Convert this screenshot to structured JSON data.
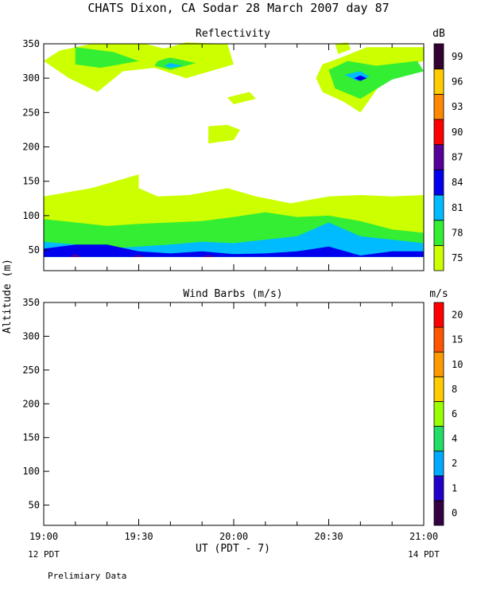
{
  "chart_data": [
    {
      "type": "heatmap",
      "title": "Reflectivity",
      "colorbar_label": "dB",
      "colorbar_ticks": [
        "75",
        "78",
        "81",
        "84",
        "87",
        "90",
        "93",
        "96",
        "99"
      ],
      "colors": [
        "#ccff00",
        "#33ee33",
        "#00bbff",
        "#0000ee",
        "#550099",
        "#ff0000",
        "#ff8800",
        "#ffcc00",
        "#330033"
      ],
      "xlim": [
        0,
        120
      ],
      "ylim": [
        20,
        350
      ],
      "yticks": [
        50,
        100,
        150,
        200,
        250,
        300,
        350
      ],
      "regions": [
        {
          "level": 0,
          "points": [
            [
              0,
              40
            ],
            [
              120,
              40
            ],
            [
              120,
              130
            ],
            [
              110,
              128
            ],
            [
              100,
              130
            ],
            [
              90,
              128
            ],
            [
              78,
              118
            ],
            [
              67,
              128
            ],
            [
              58,
              140
            ],
            [
              46,
              130
            ],
            [
              36,
              128
            ],
            [
              30,
              140
            ],
            [
              30,
              160
            ],
            [
              15,
              140
            ],
            [
              0,
              128
            ]
          ]
        },
        {
          "level": 0,
          "points": [
            [
              0,
              325
            ],
            [
              5,
              340
            ],
            [
              15,
              350
            ],
            [
              32,
              350
            ],
            [
              38,
              343
            ],
            [
              45,
              352
            ],
            [
              58,
              350
            ],
            [
              60,
              320
            ],
            [
              45,
              300
            ],
            [
              35,
              315
            ],
            [
              25,
              310
            ],
            [
              17,
              280
            ],
            [
              8,
              300
            ]
          ]
        },
        {
          "level": 0,
          "points": [
            [
              52,
              205
            ],
            [
              60,
              210
            ],
            [
              62,
              225
            ],
            [
              58,
              232
            ],
            [
              52,
              230
            ]
          ]
        },
        {
          "level": 0,
          "points": [
            [
              60,
              262
            ],
            [
              67,
              270
            ],
            [
              65,
              280
            ],
            [
              58,
              272
            ]
          ]
        },
        {
          "level": 0,
          "points": [
            [
              88,
              320
            ],
            [
              94,
              330
            ],
            [
              102,
              345
            ],
            [
              120,
              345
            ],
            [
              120,
              325
            ],
            [
              110,
              315
            ],
            [
              100,
              250
            ],
            [
              95,
              265
            ],
            [
              88,
              280
            ],
            [
              86,
              300
            ]
          ]
        },
        {
          "level": 0,
          "points": [
            [
              92,
              350
            ],
            [
              93,
              335
            ],
            [
              97,
              342
            ],
            [
              96,
              352
            ]
          ]
        },
        {
          "level": 1,
          "points": [
            [
              0,
              40
            ],
            [
              120,
              40
            ],
            [
              120,
              75
            ],
            [
              110,
              80
            ],
            [
              100,
              92
            ],
            [
              90,
              100
            ],
            [
              80,
              98
            ],
            [
              70,
              105
            ],
            [
              60,
              98
            ],
            [
              50,
              92
            ],
            [
              40,
              90
            ],
            [
              30,
              88
            ],
            [
              20,
              85
            ],
            [
              10,
              90
            ],
            [
              0,
              95
            ]
          ]
        },
        {
          "level": 1,
          "points": [
            [
              10,
              345
            ],
            [
              22,
              338
            ],
            [
              30,
              325
            ],
            [
              18,
              315
            ],
            [
              10,
              320
            ]
          ]
        },
        {
          "level": 1,
          "points": [
            [
              36,
              325
            ],
            [
              40,
              330
            ],
            [
              48,
              322
            ],
            [
              40,
              312
            ],
            [
              35,
              318
            ]
          ]
        },
        {
          "level": 1,
          "points": [
            [
              90,
              312
            ],
            [
              96,
              325
            ],
            [
              105,
              318
            ],
            [
              118,
              325
            ],
            [
              120,
              310
            ],
            [
              110,
              298
            ],
            [
              100,
              270
            ],
            [
              92,
              285
            ]
          ]
        },
        {
          "level": 2,
          "points": [
            [
              0,
              40
            ],
            [
              120,
              40
            ],
            [
              120,
              60
            ],
            [
              110,
              65
            ],
            [
              100,
              70
            ],
            [
              90,
              90
            ],
            [
              80,
              70
            ],
            [
              70,
              65
            ],
            [
              60,
              60
            ],
            [
              50,
              62
            ],
            [
              40,
              58
            ],
            [
              30,
              55
            ],
            [
              20,
              52
            ],
            [
              10,
              58
            ],
            [
              0,
              62
            ]
          ]
        },
        {
          "level": 2,
          "points": [
            [
              38,
              318
            ],
            [
              40,
              322
            ],
            [
              44,
              318
            ],
            [
              40,
              315
            ]
          ]
        },
        {
          "level": 2,
          "points": [
            [
              95,
              305
            ],
            [
              100,
              310
            ],
            [
              103,
              302
            ],
            [
              99,
              296
            ]
          ]
        },
        {
          "level": 3,
          "points": [
            [
              0,
              40
            ],
            [
              120,
              40
            ],
            [
              120,
              48
            ],
            [
              110,
              48
            ],
            [
              100,
              42
            ],
            [
              90,
              55
            ],
            [
              80,
              48
            ],
            [
              70,
              45
            ],
            [
              60,
              44
            ],
            [
              50,
              48
            ],
            [
              40,
              45
            ],
            [
              30,
              48
            ],
            [
              20,
              58
            ],
            [
              10,
              58
            ],
            [
              0,
              52
            ]
          ]
        },
        {
          "level": 3,
          "points": [
            [
              98,
              300
            ],
            [
              100,
              304
            ],
            [
              102,
              300
            ],
            [
              100,
              296
            ]
          ]
        },
        {
          "level": 4,
          "points": [
            [
              8,
              40
            ],
            [
              12,
              40
            ],
            [
              10,
              44
            ]
          ]
        },
        {
          "level": 4,
          "points": [
            [
              28,
              40
            ],
            [
              32,
              40
            ],
            [
              30,
              43
            ]
          ]
        },
        {
          "level": 4,
          "points": [
            [
              50,
              40
            ],
            [
              54,
              40
            ],
            [
              52,
              43
            ]
          ]
        }
      ]
    },
    {
      "type": "scatter",
      "title": "Wind Barbs (m/s)",
      "colorbar_label": "m/s",
      "colorbar_ticks": [
        "0",
        "1",
        "2",
        "4",
        "6",
        "8",
        "10",
        "15",
        "20"
      ],
      "colors": [
        "#330044",
        "#2200cc",
        "#00aaff",
        "#22dd66",
        "#99ff00",
        "#ffcc00",
        "#ff9900",
        "#ff5500",
        "#ff0000"
      ],
      "xlim": [
        0,
        120
      ],
      "ylim": [
        20,
        350
      ],
      "yticks": [
        50,
        100,
        150,
        200,
        250,
        300,
        350
      ],
      "points": []
    }
  ],
  "header": {
    "title": "CHATS Dixon, CA  Sodar  28 March 2007  day  87"
  },
  "axes": {
    "ylabel": "Altitude (m)",
    "xticks": [
      {
        "minutes": 0,
        "label": "19:00"
      },
      {
        "minutes": 30,
        "label": "19:30"
      },
      {
        "minutes": 60,
        "label": "20:00"
      },
      {
        "minutes": 90,
        "label": "20:30"
      },
      {
        "minutes": 120,
        "label": "21:00"
      }
    ],
    "xlabel": "UT  (PDT - 7)",
    "left_time_label": "12 PDT",
    "right_time_label": "14 PDT"
  },
  "footer": {
    "note": "Prelimiary Data"
  }
}
